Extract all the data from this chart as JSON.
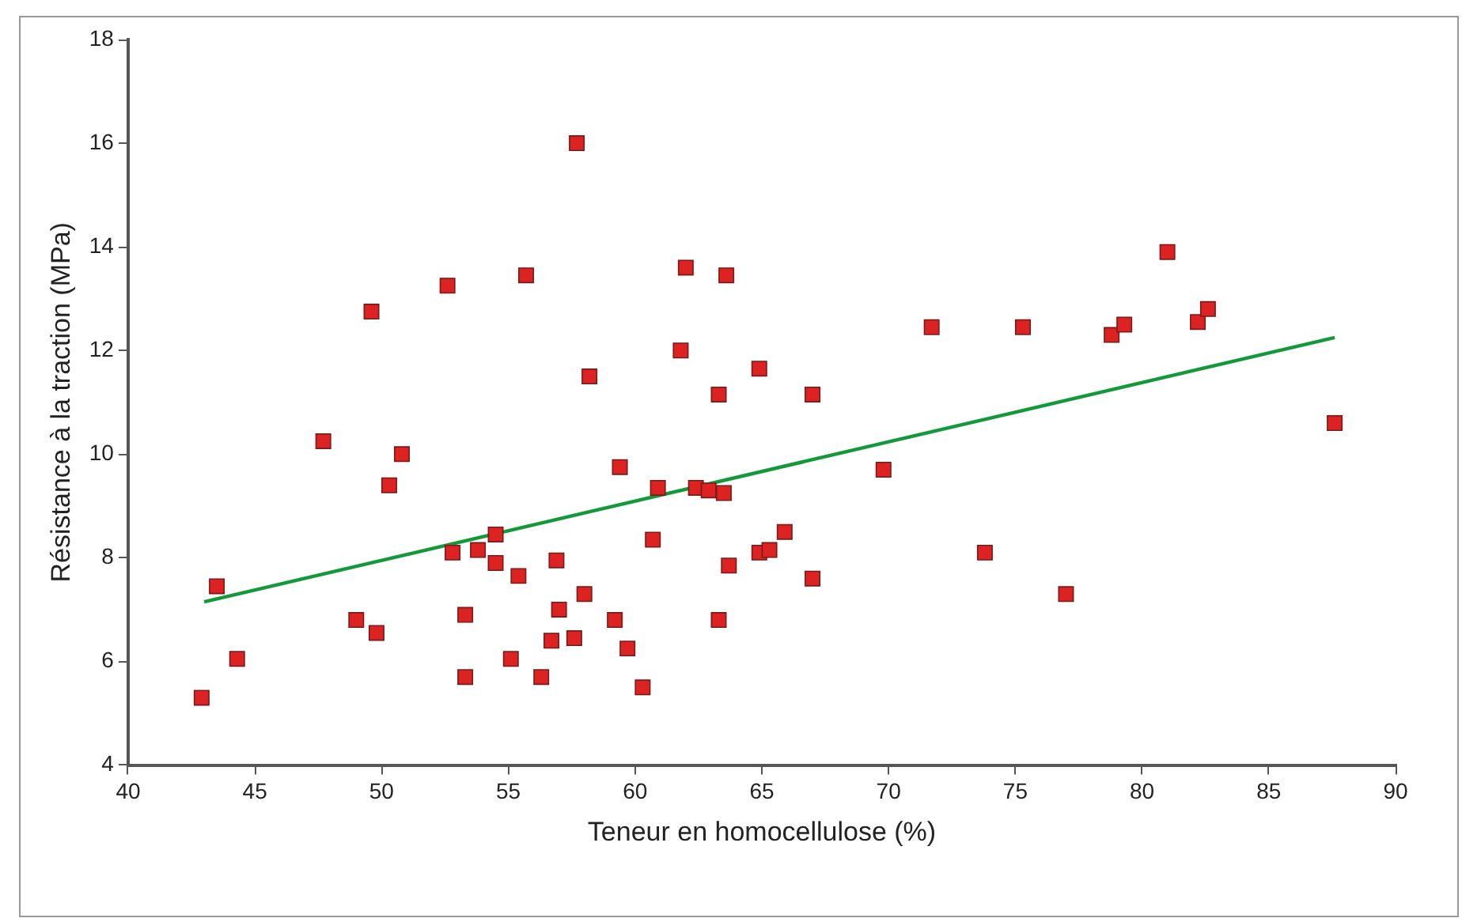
{
  "chart_data": {
    "type": "scatter",
    "xlabel": "Teneur en homocellulose (%)",
    "ylabel": "Résistance à la traction (MPa)",
    "xlim": [
      40,
      90
    ],
    "xticks": [
      40,
      45,
      50,
      55,
      60,
      65,
      70,
      75,
      80,
      85,
      90
    ],
    "ylim": [
      4,
      18
    ],
    "yticks": [
      4,
      6,
      8,
      10,
      12,
      14,
      16,
      18
    ],
    "grid": false,
    "legend": false,
    "series": [
      {
        "marker": "square",
        "color": "#dd2222",
        "x": [
          42.9,
          43.5,
          44.3,
          47.7,
          49.0,
          49.6,
          49.8,
          50.3,
          50.8,
          52.6,
          52.8,
          53.3,
          53.3,
          53.8,
          54.5,
          54.5,
          55.1,
          55.4,
          55.7,
          56.3,
          56.7,
          56.9,
          57.0,
          57.6,
          57.7,
          58.0,
          58.2,
          59.2,
          59.4,
          59.7,
          60.3,
          60.7,
          60.9,
          61.8,
          62.0,
          62.4,
          62.9,
          63.3,
          63.3,
          63.5,
          63.6,
          63.7,
          64.9,
          64.9,
          65.3,
          65.9,
          67.0,
          67.0,
          69.8,
          71.7,
          73.8,
          75.3,
          77.0,
          78.8,
          79.3,
          81.0,
          82.2,
          82.6,
          87.6
        ],
        "values": [
          5.3,
          7.45,
          6.05,
          10.25,
          6.8,
          12.75,
          6.55,
          9.4,
          10.0,
          13.25,
          8.1,
          6.9,
          5.7,
          8.15,
          8.45,
          7.9,
          6.05,
          7.65,
          13.45,
          5.7,
          6.4,
          7.95,
          7.0,
          6.45,
          16.0,
          7.3,
          11.5,
          6.8,
          9.75,
          6.25,
          5.5,
          8.35,
          9.35,
          12.0,
          13.6,
          9.35,
          9.3,
          11.15,
          6.8,
          9.25,
          13.45,
          7.85,
          11.65,
          8.1,
          8.15,
          8.5,
          11.15,
          7.6,
          9.7,
          12.45,
          8.1,
          12.45,
          7.3,
          12.3,
          12.5,
          13.9,
          12.55,
          12.8,
          10.6
        ]
      },
      {
        "type": "line",
        "color": "#129a3a",
        "x": [
          43,
          87.6
        ],
        "values": [
          7.15,
          12.25
        ]
      }
    ]
  }
}
